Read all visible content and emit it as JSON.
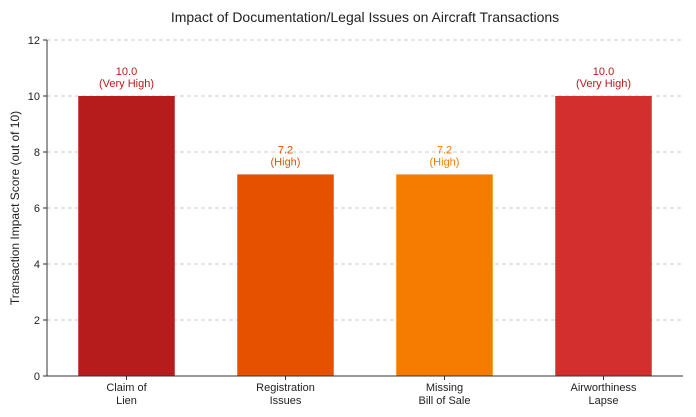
{
  "chart_data": {
    "type": "bar",
    "title": "Impact of Documentation/Legal Issues on Aircraft Transactions",
    "xlabel": "",
    "ylabel": "Transaction Impact Score (out of 10)",
    "ylim": [
      0,
      12
    ],
    "yticks": [
      "0",
      "2",
      "4",
      "6",
      "8",
      "10",
      "12"
    ],
    "grid": true,
    "categories": [
      [
        "Claim of",
        "Lien"
      ],
      [
        "Registration",
        "Issues"
      ],
      [
        "Missing",
        "Bill of Sale"
      ],
      [
        "Airworthiness",
        "Lapse"
      ]
    ],
    "values": [
      10.0,
      7.2,
      7.2,
      10.0
    ],
    "data_labels": [
      [
        "10.0",
        "(Very High)"
      ],
      [
        "7.2",
        "(High)"
      ],
      [
        "7.2",
        "(High)"
      ],
      [
        "10.0",
        "(Very High)"
      ]
    ],
    "bar_colors": [
      "#b71c1c",
      "#e65100",
      "#f57c00",
      "#d32f2f"
    ],
    "label_colors": [
      "#b71c1c",
      "#e65100",
      "#f57c00",
      "#b71c1c"
    ]
  }
}
